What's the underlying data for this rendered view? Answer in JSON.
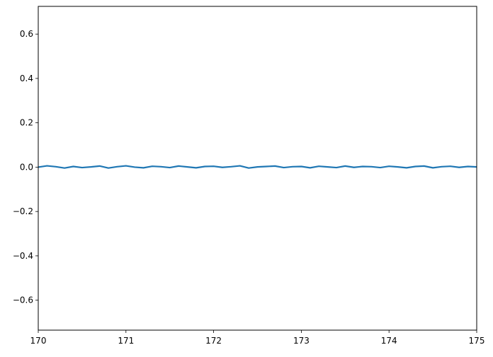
{
  "chart_data": {
    "type": "line",
    "title": "",
    "xlabel": "",
    "ylabel": "",
    "xlim": [
      170,
      175
    ],
    "ylim": [
      -0.735,
      0.725
    ],
    "xticks": [
      170,
      171,
      172,
      173,
      174,
      175
    ],
    "xtick_labels": [
      "170",
      "171",
      "172",
      "173",
      "174",
      "175"
    ],
    "yticks": [
      -0.6,
      -0.4,
      -0.2,
      0.0,
      0.2,
      0.4,
      0.6
    ],
    "ytick_labels": [
      "−0.6",
      "−0.4",
      "−0.2",
      "0.0",
      "0.2",
      "0.4",
      "0.6"
    ],
    "grid": false,
    "legend": "none",
    "series": [
      {
        "color": "#1f77b4",
        "x": [
          170.0,
          170.1,
          170.2,
          170.3,
          170.4,
          170.5,
          170.6,
          170.7,
          170.8,
          170.9,
          171.0,
          171.1,
          171.2,
          171.3,
          171.4,
          171.5,
          171.6,
          171.7,
          171.8,
          171.9,
          172.0,
          172.1,
          172.2,
          172.3,
          172.4,
          172.5,
          172.6,
          172.7,
          172.8,
          172.9,
          173.0,
          173.1,
          173.2,
          173.3,
          173.4,
          173.5,
          173.6,
          173.7,
          173.8,
          173.9,
          174.0,
          174.1,
          174.2,
          174.3,
          174.4,
          174.5,
          174.6,
          174.7,
          174.8,
          174.9,
          175.0
        ],
        "y": [
          0.0,
          0.006,
          0.002,
          -0.004,
          0.003,
          -0.002,
          0.001,
          0.005,
          -0.004,
          0.002,
          0.006,
          0.0,
          -0.003,
          0.004,
          0.002,
          -0.002,
          0.005,
          0.001,
          -0.003,
          0.003,
          0.004,
          -0.001,
          0.002,
          0.006,
          -0.004,
          0.001,
          0.003,
          0.005,
          -0.002,
          0.002,
          0.003,
          -0.003,
          0.004,
          0.001,
          -0.002,
          0.005,
          -0.001,
          0.003,
          0.002,
          -0.002,
          0.004,
          0.001,
          -0.003,
          0.003,
          0.005,
          -0.003,
          0.002,
          0.004,
          -0.001,
          0.003,
          0.001
        ]
      }
    ]
  }
}
